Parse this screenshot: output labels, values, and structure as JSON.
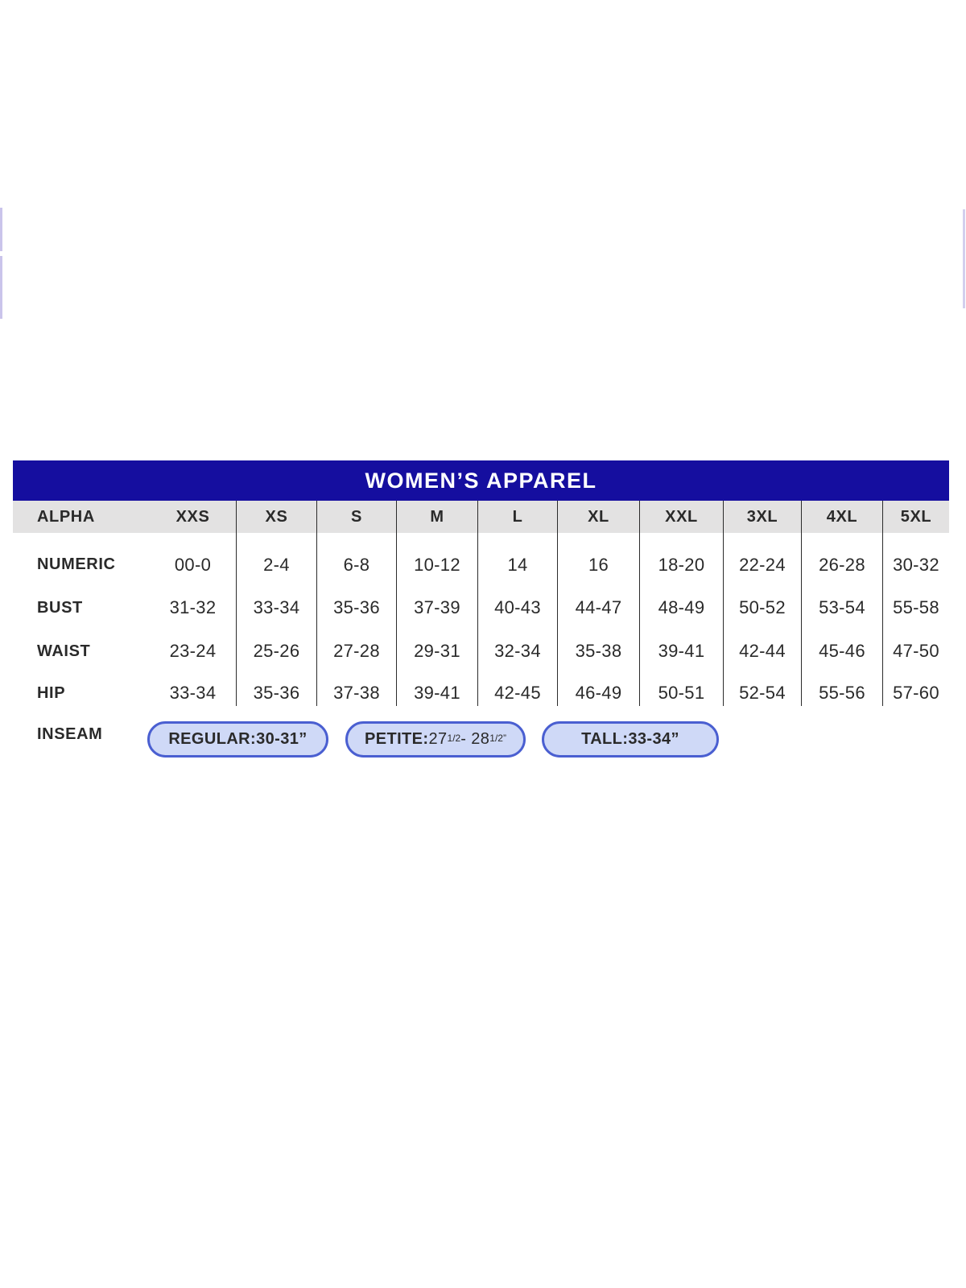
{
  "colors": {
    "title_bg": "#150e9f",
    "title_text": "#ffffff",
    "subheader_bg": "#e3e2e2",
    "body_text": "#2a2a2a",
    "divider": "#2b2b2b",
    "pill_bg": "#cfd9f7",
    "pill_border": "#4a5fd1",
    "edge_mark": "#cac4eb"
  },
  "table": {
    "title": "WOMEN’S APPAREL",
    "columns": [
      "ALPHA",
      "XXS",
      "XS",
      "S",
      "M",
      "L",
      "XL",
      "XXL",
      "3XL",
      "4XL",
      "5XL"
    ],
    "rows": [
      {
        "label": "NUMERIC",
        "values": [
          "00-0",
          "2-4",
          "6-8",
          "10-12",
          "14",
          "16",
          "18-20",
          "22-24",
          "26-28",
          "30-32"
        ]
      },
      {
        "label": "BUST",
        "values": [
          "31-32",
          "33-34",
          "35-36",
          "37-39",
          "40-43",
          "44-47",
          "48-49",
          "50-52",
          "53-54",
          "55-58"
        ]
      },
      {
        "label": "WAIST",
        "values": [
          "23-24",
          "25-26",
          "27-28",
          "29-31",
          "32-34",
          "35-38",
          "39-41",
          "42-44",
          "45-46",
          "47-50"
        ]
      },
      {
        "label": "HIP",
        "values": [
          "33-34",
          "35-36",
          "37-38",
          "39-41",
          "42-45",
          "46-49",
          "50-51",
          "52-54",
          "55-56",
          "57-60"
        ]
      }
    ],
    "inseam": {
      "label": "INSEAM",
      "pills": [
        {
          "label": "REGULAR:",
          "value": "30-31”"
        },
        {
          "label": "PETITE:",
          "v1": "27",
          "f1": "1/2",
          "v2": "- 28",
          "f2": "1/2”"
        },
        {
          "label": "TALL:",
          "value": "33-34”"
        }
      ]
    }
  }
}
